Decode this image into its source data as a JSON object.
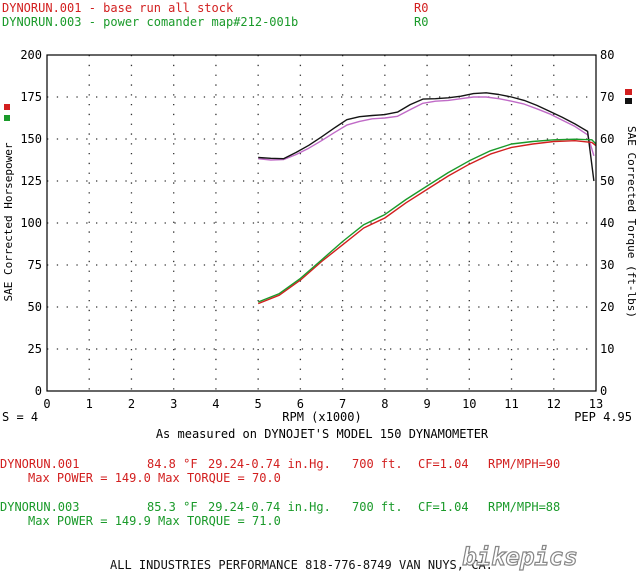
{
  "header": {
    "run1": {
      "label": "DYNORUN.001 - base run all stock",
      "tag": "R0",
      "color": "#d21f1f"
    },
    "run2": {
      "label": "DYNORUN.003 - power comander map#212-001b",
      "tag": "R0",
      "color": "#1a9a2a"
    }
  },
  "chart_data": {
    "type": "line",
    "xlabel": "RPM (x1000)",
    "ylabel_left": "SAE Corrected Horsepower",
    "ylabel_right": "SAE Corrected Torque (ft-lbs)",
    "xlim": [
      0,
      13
    ],
    "ylim_left": [
      0,
      200
    ],
    "ylim_right": [
      0,
      80
    ],
    "x_ticks": [
      "0",
      "1",
      "2",
      "3",
      "4",
      "5",
      "6",
      "7",
      "8",
      "9",
      "10",
      "11",
      "12",
      "13"
    ],
    "y_ticks_left": [
      "0",
      "25",
      "50",
      "75",
      "100",
      "125",
      "150",
      "175",
      "200"
    ],
    "y_ticks_right": [
      "0",
      "10",
      "20",
      "30",
      "40",
      "50",
      "60",
      "70",
      "80"
    ],
    "grid": true,
    "left_footer": "S = 4",
    "right_footer": "PEP 4.95",
    "series": [
      {
        "name": "DYNORUN.001 torque",
        "color": "#c06bc7",
        "axis": "right",
        "x": [
          5.0,
          5.3,
          5.6,
          5.9,
          6.2,
          6.5,
          6.8,
          7.1,
          7.4,
          7.7,
          8.0,
          8.3,
          8.6,
          8.9,
          9.2,
          9.5,
          9.8,
          10.1,
          10.4,
          10.7,
          11.0,
          11.3,
          11.6,
          11.9,
          12.2,
          12.5,
          12.8,
          12.95
        ],
        "y": [
          55.3,
          55.0,
          55.1,
          56.3,
          57.8,
          59.6,
          61.5,
          63.3,
          64.2,
          64.8,
          65.0,
          65.4,
          67.0,
          68.5,
          69.0,
          69.2,
          69.6,
          70.0,
          70.0,
          69.6,
          69.0,
          68.3,
          67.2,
          66.0,
          64.5,
          63.0,
          61.0,
          56.0
        ]
      },
      {
        "name": "DYNORUN.003 torque",
        "color": "#141414",
        "axis": "right",
        "x": [
          5.0,
          5.3,
          5.6,
          5.9,
          6.2,
          6.5,
          6.8,
          7.1,
          7.4,
          7.7,
          8.0,
          8.3,
          8.6,
          8.9,
          9.2,
          9.5,
          9.8,
          10.1,
          10.4,
          10.7,
          11.0,
          11.3,
          11.6,
          11.9,
          12.2,
          12.5,
          12.8,
          12.95
        ],
        "y": [
          55.6,
          55.4,
          55.3,
          56.8,
          58.5,
          60.5,
          62.6,
          64.6,
          65.3,
          65.6,
          65.8,
          66.4,
          68.2,
          69.5,
          69.6,
          69.8,
          70.2,
          70.8,
          71.0,
          70.6,
          70.0,
          69.2,
          68.0,
          66.6,
          65.2,
          63.6,
          61.8,
          50.0
        ]
      },
      {
        "name": "DYNORUN.001 power",
        "color": "#d21f1f",
        "axis": "left",
        "x": [
          5.0,
          5.5,
          6.0,
          6.5,
          7.0,
          7.5,
          8.0,
          8.5,
          9.0,
          9.5,
          10.0,
          10.5,
          11.0,
          11.5,
          12.0,
          12.5,
          12.9,
          13.0
        ],
        "y": [
          52.0,
          57.0,
          66.0,
          77.0,
          87.0,
          97.0,
          103.0,
          112.0,
          120.0,
          128.0,
          135.0,
          141.0,
          145.0,
          147.0,
          148.5,
          149.0,
          148.0,
          146.0
        ]
      },
      {
        "name": "DYNORUN.003 power",
        "color": "#1a9a2a",
        "axis": "left",
        "x": [
          5.0,
          5.5,
          6.0,
          6.5,
          7.0,
          7.5,
          8.0,
          8.5,
          9.0,
          9.5,
          10.0,
          10.5,
          11.0,
          11.5,
          12.0,
          12.5,
          12.9,
          13.0
        ],
        "y": [
          53.0,
          58.0,
          67.0,
          78.0,
          89.0,
          99.0,
          105.0,
          114.0,
          122.0,
          130.0,
          137.0,
          143.0,
          147.0,
          148.5,
          149.5,
          149.9,
          149.5,
          147.0
        ]
      }
    ]
  },
  "footer": {
    "dyno_line": "As measured on DYNOJET'S MODEL 150 DYNAMOMETER",
    "run1": {
      "name": "DYNORUN.001",
      "temp": "84.8 °F",
      "baro": "29.24-0.74 in.Hg.",
      "alt": "700 ft.",
      "cf": "CF=1.04",
      "ratio": "RPM/MPH=90",
      "max_line": "Max POWER = 149.0  Max TORQUE = 70.0"
    },
    "run2": {
      "name": "DYNORUN.003",
      "temp": "85.3 °F",
      "baro": "29.24-0.74 in.Hg.",
      "alt": "700 ft.",
      "cf": "CF=1.04",
      "ratio": "RPM/MPH=88",
      "max_line": "Max POWER = 149.9  Max TORQUE = 71.0"
    },
    "shop_line": "ALL INDUSTRIES PERFORMANCE 818-776-8749 VAN NUYS, CA.",
    "watermark": "bikepics"
  },
  "colors": {
    "axis": "#000000",
    "grid": "#333333",
    "marker_red": "#d21f1f",
    "marker_green": "#1a9a2a",
    "marker_black": "#111111"
  }
}
